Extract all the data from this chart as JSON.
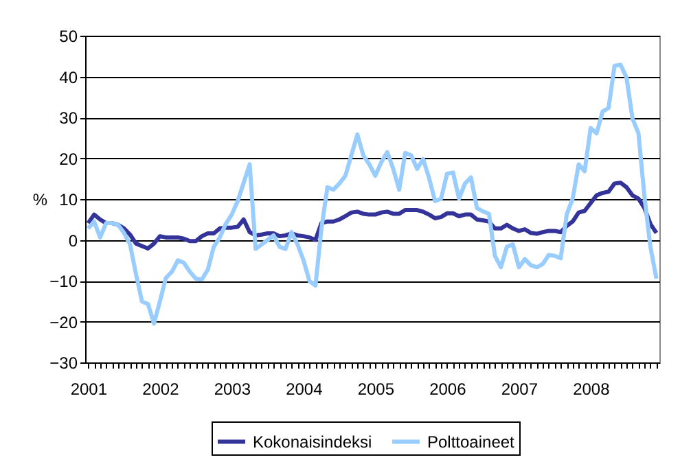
{
  "chart_data": {
    "type": "line",
    "categories": [
      "2001",
      null,
      null,
      null,
      null,
      null,
      null,
      null,
      null,
      null,
      null,
      null,
      "2002",
      null,
      null,
      null,
      null,
      null,
      null,
      null,
      null,
      null,
      null,
      null,
      "2003",
      null,
      null,
      null,
      null,
      null,
      null,
      null,
      null,
      null,
      null,
      null,
      "2004",
      null,
      null,
      null,
      null,
      null,
      null,
      null,
      null,
      null,
      null,
      null,
      "2005",
      null,
      null,
      null,
      null,
      null,
      null,
      null,
      null,
      null,
      null,
      null,
      "2006",
      null,
      null,
      null,
      null,
      null,
      null,
      null,
      null,
      null,
      null,
      null,
      "2007",
      null,
      null,
      null,
      null,
      null,
      null,
      null,
      null,
      null,
      null,
      null,
      "2008",
      null,
      null,
      null,
      null,
      null,
      null,
      null,
      null,
      null,
      null,
      null
    ],
    "series": [
      {
        "name": "Kokonaisindeksi",
        "color": "#333399",
        "values": [
          4.1,
          6.2,
          5,
          4.1,
          4.1,
          3.7,
          2.8,
          1.3,
          -0.9,
          -1.5,
          -2.1,
          -0.9,
          0.9,
          0.6,
          0.6,
          0.6,
          0.3,
          -0.3,
          -0.3,
          0.9,
          1.6,
          1.6,
          2.8,
          3,
          3,
          3.2,
          5,
          1.9,
          1.1,
          1.3,
          1.6,
          1.6,
          0.9,
          1.1,
          1.6,
          1.1,
          0.9,
          0.6,
          0,
          4.1,
          4.5,
          4.5,
          5,
          5.8,
          6.7,
          6.9,
          6.4,
          6.2,
          6.2,
          6.7,
          6.9,
          6.4,
          6.4,
          7.3,
          7.3,
          7.3,
          6.9,
          6.2,
          5.3,
          5.6,
          6.5,
          6.5,
          5.8,
          6.2,
          6.2,
          5,
          4.8,
          4.5,
          2.8,
          2.8,
          3.7,
          2.8,
          2.2,
          2.6,
          1.7,
          1.5,
          1.9,
          2.2,
          2.2,
          1.9,
          3.4,
          4.5,
          6.7,
          7.1,
          9,
          10.9,
          11.5,
          11.8,
          13.8,
          14,
          12.9,
          10.9,
          10.1,
          7.8,
          3.9,
          1.7
        ]
      },
      {
        "name": "Polttoaineet",
        "color": "#99ccff",
        "values": [
          2.8,
          4.5,
          0.6,
          4.1,
          4.1,
          3.7,
          1.7,
          -1.1,
          -8.4,
          -15.1,
          -15.7,
          -20.5,
          -15,
          -9.3,
          -7.8,
          -5,
          -5.6,
          -7.8,
          -9.5,
          -9.7,
          -7.3,
          -1.7,
          0.6,
          3.9,
          6.2,
          9.5,
          14,
          18.5,
          -2.2,
          -1.1,
          0,
          1.1,
          -1.7,
          -2.2,
          1.9,
          -1.1,
          -5,
          -10.1,
          -11.2,
          2.8,
          12.9,
          12.3,
          13.8,
          15.7,
          20.7,
          25.8,
          20.7,
          18.5,
          15.7,
          19,
          21.5,
          17.4,
          12.3,
          21.3,
          20.7,
          17.4,
          19.8,
          15.1,
          9.5,
          10.1,
          16.2,
          16.5,
          10.1,
          13.8,
          15.3,
          7.8,
          7,
          6.4,
          -3.9,
          -6.7,
          -1.7,
          -1.1,
          -6.7,
          -4.7,
          -6.2,
          -6.7,
          -5.9,
          -3.7,
          -3.9,
          -4.5,
          6.2,
          10.1,
          18.5,
          16.8,
          27.4,
          26.1,
          31.4,
          32.3,
          42.6,
          42.9,
          39.8,
          29.7,
          26.1,
          10.6,
          -1.7,
          -9.5
        ]
      }
    ],
    "ylabel": "%",
    "ylim": [
      -30,
      50
    ],
    "yticks": [
      -30,
      -20,
      -10,
      0,
      10,
      20,
      30,
      40,
      50
    ],
    "grid": "y",
    "legend": "bottom"
  }
}
